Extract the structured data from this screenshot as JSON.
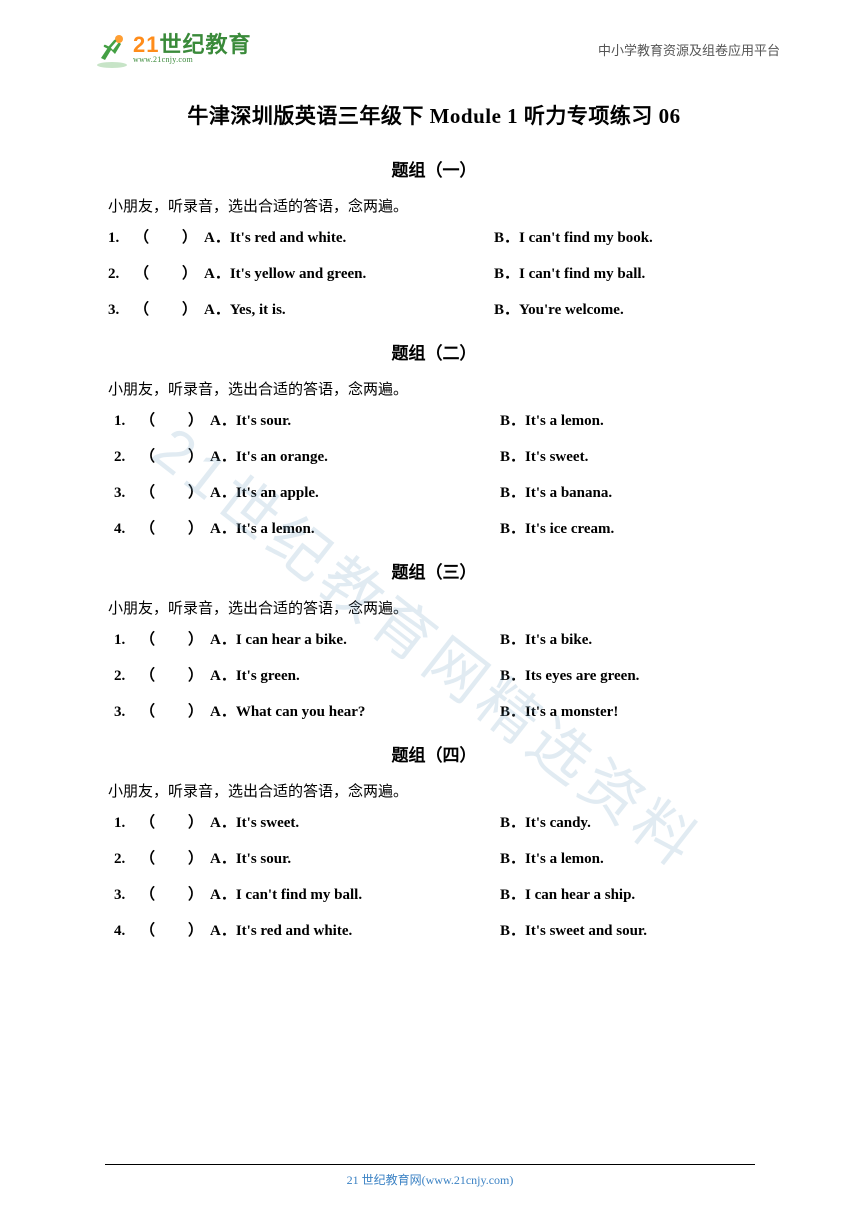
{
  "header": {
    "logo_main_prefix": "2",
    "logo_main_suffix": "世纪教育",
    "logo_sub": "www.21cnjy.com",
    "platform_text": "中小学教育资源及组卷应用平台"
  },
  "title": "牛津深圳版英语三年级下 Module 1 听力专项练习 06",
  "groups": [
    {
      "heading": "题组（一）",
      "instruction": "小朋友，听录音，选出合适的答语，念两遍。",
      "indented": false,
      "questions": [
        {
          "num": "1.",
          "a": "A．It's red and white.",
          "b": "B．I can't find my book."
        },
        {
          "num": "2.",
          "a": "A．It's yellow and green.",
          "b": "B．I can't find my ball."
        },
        {
          "num": "3.",
          "a": "A．Yes, it is.",
          "b": "B．You're welcome."
        }
      ]
    },
    {
      "heading": "题组（二）",
      "instruction": "小朋友，听录音，选出合适的答语，念两遍。",
      "indented": true,
      "questions": [
        {
          "num": "1.",
          "a": "A．It's sour.",
          "b": "B．It's a lemon."
        },
        {
          "num": "2.",
          "a": "A．It's an orange.",
          "b": "B．It's sweet."
        },
        {
          "num": "3.",
          "a": "A．It's an apple.",
          "b": "B．It's a banana."
        },
        {
          "num": "4.",
          "a": "A．It's a lemon.",
          "b": "B．It's ice cream."
        }
      ]
    },
    {
      "heading": "题组（三）",
      "instruction": "小朋友，听录音，选出合适的答语，念两遍。",
      "indented": true,
      "questions": [
        {
          "num": "1.",
          "a": "A．I can hear a bike.",
          "b": "B．It's a bike."
        },
        {
          "num": "2.",
          "a": "A．It's green.",
          "b": "B．Its eyes are green."
        },
        {
          "num": "3.",
          "a": "A．What can you hear?",
          "b": "B．It's a monster!"
        }
      ]
    },
    {
      "heading": "题组（四）",
      "instruction": "小朋友，听录音，选出合适的答语，念两遍。",
      "indented": true,
      "questions": [
        {
          "num": "1.",
          "a": "A．It's sweet.",
          "b": "B．It's candy."
        },
        {
          "num": "2.",
          "a": "A．It's sour.",
          "b": "B．It's a lemon."
        },
        {
          "num": "3.",
          "a": "A．I can't find my ball.",
          "b": "B．I can hear a ship."
        },
        {
          "num": "4.",
          "a": "A．It's red and white.",
          "b": "B．It's sweet and sour."
        }
      ]
    }
  ],
  "paren_text": "（　　）",
  "watermark": "21世纪教育网精选资料",
  "footer": "21 世纪教育网(www.21cnjy.com)",
  "colors": {
    "logo_green": "#3a8a3a",
    "logo_orange": "#ff8c1a",
    "footer_link": "#3b82c4",
    "watermark": "rgba(120,165,195,0.22)"
  }
}
